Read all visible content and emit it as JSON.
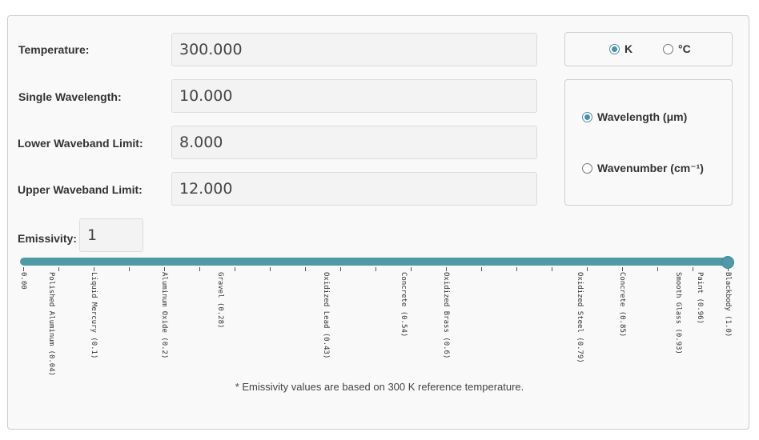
{
  "inputs": {
    "temperature": {
      "label": "Temperature:",
      "value": "300.000"
    },
    "single_wavelength": {
      "label": "Single Wavelength:",
      "value": "10.000"
    },
    "lower_waveband": {
      "label": "Lower Waveband Limit:",
      "value": "8.000"
    },
    "upper_waveband": {
      "label": "Upper Waveband Limit:",
      "value": "12.000"
    },
    "emissivity": {
      "label": "Emissivity:",
      "value": "1"
    }
  },
  "temp_units": {
    "options": [
      {
        "label": "K",
        "checked": true
      },
      {
        "label": "°C",
        "checked": false
      }
    ]
  },
  "spectral_units": {
    "options": [
      {
        "label": "Wavelength (μm)",
        "checked": true
      },
      {
        "label": "Wavenumber (cm⁻¹)",
        "checked": false
      }
    ]
  },
  "slider": {
    "min": 0,
    "max": 1,
    "value": 1.0,
    "accent_color": "#4f9aa6",
    "labels": [
      {
        "value": 0.0,
        "text": "0.00"
      },
      {
        "value": 0.04,
        "text": "Polished Aluminum (0.04)"
      },
      {
        "value": 0.1,
        "text": "Liquid Mercury (0.1)"
      },
      {
        "value": 0.2,
        "text": "Aluminum Oxide (0.2)"
      },
      {
        "value": 0.28,
        "text": "Gravel (0.28)"
      },
      {
        "value": 0.43,
        "text": "Oxidized Lead (0.43)"
      },
      {
        "value": 0.54,
        "text": "Concrete (0.54)"
      },
      {
        "value": 0.6,
        "text": "Oxidized Brass (0.6)"
      },
      {
        "value": 0.79,
        "text": "Oxidized Steel (0.79)"
      },
      {
        "value": 0.85,
        "text": "Concrete (0.85)"
      },
      {
        "value": 0.93,
        "text": "Smooth Glass (0.93)"
      },
      {
        "value": 0.96,
        "text": "Paint (0.96)"
      },
      {
        "value": 1.0,
        "text": "Blackbody (1.0)"
      }
    ]
  },
  "footnote": "* Emissivity values are based on 300 K reference temperature."
}
